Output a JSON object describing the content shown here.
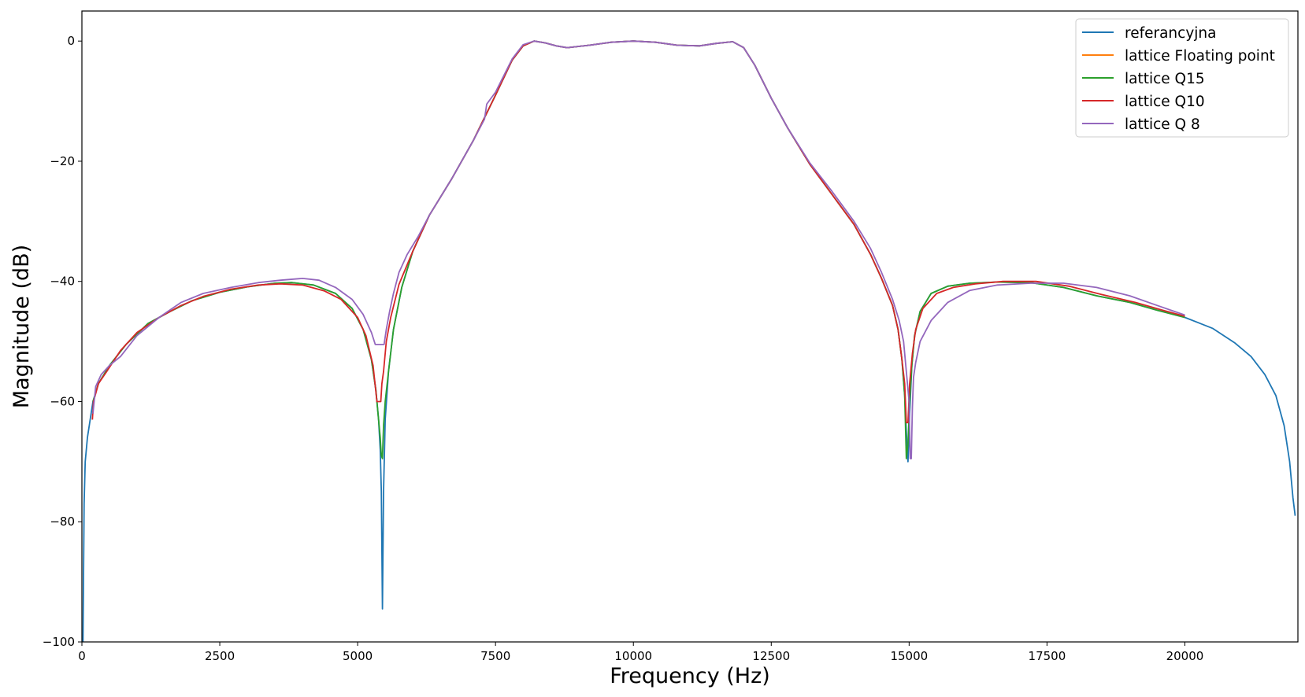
{
  "chart_data": {
    "type": "line",
    "title": "",
    "xlabel": "Frequency (Hz)",
    "ylabel": "Magnitude (dB)",
    "xlim": [
      0,
      22050
    ],
    "ylim": [
      -100,
      5
    ],
    "xticks": [
      0,
      2500,
      5000,
      7500,
      10000,
      12500,
      15000,
      17500,
      20000
    ],
    "yticks": [
      -100,
      -80,
      -60,
      -40,
      -20,
      0
    ],
    "xtick_labels": [
      "0",
      "2500",
      "5000",
      "7500",
      "10000",
      "12500",
      "15000",
      "17500",
      "20000"
    ],
    "ytick_labels": [
      "−100",
      "−80",
      "−60",
      "−40",
      "−20",
      "0"
    ],
    "grid": false,
    "legend_position": "top-right",
    "series": [
      {
        "name": "referancyjna",
        "color": "#1f77b4",
        "x": [
          0,
          20,
          40,
          60,
          100,
          150,
          200,
          300,
          500,
          800,
          1200,
          1600,
          2000,
          2500,
          3000,
          3500,
          3800,
          4200,
          4600,
          4900,
          5100,
          5250,
          5330,
          5380,
          5410,
          5430,
          5450,
          5470,
          5500,
          5560,
          5650,
          5800,
          6000,
          6300,
          6700,
          7100,
          7500,
          7800,
          8000,
          8200,
          8400,
          8600,
          8800,
          9200,
          9600,
          10000,
          10400,
          10800,
          11200,
          11500,
          11800,
          12000,
          12200,
          12500,
          12800,
          13200,
          13600,
          14000,
          14300,
          14500,
          14700,
          14800,
          14870,
          14920,
          14950,
          14980,
          15010,
          15050,
          15100,
          15200,
          15400,
          15700,
          16100,
          16600,
          17200,
          17800,
          18400,
          19000,
          19500,
          20000,
          20500,
          20900,
          21200,
          21450,
          21650,
          21800,
          21900,
          21960,
          22000
        ],
        "y": [
          -100,
          -100,
          -77,
          -70,
          -66,
          -63,
          -60,
          -57,
          -54,
          -50.5,
          -47,
          -45,
          -43.2,
          -41.8,
          -40.9,
          -40.3,
          -40.2,
          -40.6,
          -42,
          -44.5,
          -48,
          -53,
          -58,
          -63,
          -68,
          -75,
          -94.5,
          -75,
          -63,
          -55,
          -48,
          -41,
          -35,
          -29,
          -23,
          -16.5,
          -9,
          -3.2,
          -0.8,
          0,
          -0.3,
          -0.8,
          -1.1,
          -0.7,
          -0.2,
          0,
          -0.2,
          -0.7,
          -0.8,
          -0.4,
          -0.1,
          -1.1,
          -4,
          -9.5,
          -14.5,
          -20.5,
          -25.5,
          -30.5,
          -35.5,
          -39.5,
          -44,
          -48,
          -53,
          -59,
          -65,
          -70,
          -62,
          -54,
          -49,
          -45,
          -42,
          -40.8,
          -40.3,
          -40.1,
          -40.2,
          -41,
          -42.4,
          -43.5,
          -44.8,
          -46,
          -47.8,
          -50.2,
          -52.5,
          -55.5,
          -59,
          -64,
          -70,
          -76,
          -79
        ]
      },
      {
        "name": "lattice Floating point",
        "color": "#ff7f0e",
        "x": [],
        "y": []
      },
      {
        "name": "lattice Q15",
        "color": "#2ca02c",
        "x": [
          200,
          300,
          500,
          800,
          1200,
          1600,
          2000,
          2500,
          3000,
          3500,
          3800,
          4200,
          4600,
          4900,
          5100,
          5250,
          5330,
          5380,
          5410,
          5430,
          5450,
          5470,
          5500,
          5560,
          5650,
          5800,
          6000,
          6300,
          6700,
          7100,
          7500,
          7800,
          8000,
          8200,
          8400,
          8600,
          8800,
          9200,
          9600,
          10000,
          10400,
          10800,
          11200,
          11500,
          11800,
          12000,
          12200,
          12500,
          12800,
          13200,
          13600,
          14000,
          14300,
          14500,
          14700,
          14800,
          14870,
          14920,
          14950,
          14980,
          15010,
          15050,
          15100,
          15200,
          15400,
          15700,
          16100,
          16600,
          17200,
          17800,
          18400,
          19000,
          19500,
          20000
        ],
        "y": [
          -60,
          -57,
          -54,
          -50.5,
          -47,
          -45,
          -43.2,
          -41.8,
          -40.9,
          -40.3,
          -40.2,
          -40.6,
          -42,
          -44.5,
          -48,
          -53,
          -58,
          -63,
          -66,
          -69,
          -69.5,
          -64,
          -60,
          -55,
          -48,
          -41,
          -35,
          -29,
          -23,
          -16.5,
          -9,
          -3.2,
          -0.8,
          0,
          -0.3,
          -0.8,
          -1.1,
          -0.7,
          -0.2,
          0,
          -0.2,
          -0.7,
          -0.8,
          -0.4,
          -0.1,
          -1.1,
          -4,
          -9.5,
          -14.5,
          -20.5,
          -25.5,
          -30.5,
          -35.5,
          -39.5,
          -44,
          -48,
          -53,
          -59,
          -69.5,
          -67,
          -60,
          -54,
          -49,
          -45,
          -42,
          -40.8,
          -40.3,
          -40.1,
          -40.2,
          -41,
          -42.4,
          -43.5,
          -44.8,
          -46
        ]
      },
      {
        "name": "lattice Q10",
        "color": "#d62728",
        "x": [
          190,
          210,
          300,
          450,
          700,
          1000,
          1400,
          1800,
          2200,
          2700,
          3200,
          3600,
          4000,
          4400,
          4700,
          5000,
          5150,
          5280,
          5350,
          5380,
          5420,
          5440,
          5470,
          5520,
          5600,
          5750,
          6000,
          6300,
          6700,
          7100,
          7500,
          7800,
          8000,
          8200,
          8400,
          8600,
          8800,
          9200,
          9600,
          10000,
          10400,
          10800,
          11200,
          11500,
          11800,
          12000,
          12200,
          12500,
          12800,
          13200,
          13600,
          14000,
          14300,
          14500,
          14700,
          14800,
          14870,
          14920,
          14950,
          14980,
          15010,
          15060,
          15120,
          15250,
          15500,
          15800,
          16200,
          16700,
          17300,
          17900,
          18500,
          19100,
          19600,
          20000
        ],
        "y": [
          -63,
          -60,
          -57,
          -55,
          -51.5,
          -48.5,
          -46,
          -44,
          -42.5,
          -41.3,
          -40.6,
          -40.4,
          -40.6,
          -41.6,
          -43,
          -46,
          -49,
          -54,
          -60,
          -60,
          -60,
          -57,
          -55,
          -50,
          -46,
          -40.5,
          -35,
          -29,
          -23,
          -16.5,
          -9,
          -3.2,
          -0.8,
          0,
          -0.3,
          -0.8,
          -1.1,
          -0.7,
          -0.2,
          0,
          -0.2,
          -0.7,
          -0.8,
          -0.4,
          -0.1,
          -1.1,
          -4,
          -9.5,
          -14.5,
          -20.5,
          -25.5,
          -30.5,
          -35.5,
          -39.5,
          -44,
          -48,
          -53,
          -57,
          -63.5,
          -63.5,
          -57,
          -52,
          -48,
          -44.5,
          -42,
          -41,
          -40.4,
          -40,
          -40,
          -40.8,
          -42.2,
          -43.5,
          -44.8,
          -45.8
        ]
      },
      {
        "name": "lattice Q 8",
        "color": "#9467bd",
        "x": [
          200,
          250,
          350,
          500,
          700,
          1000,
          1400,
          1800,
          2200,
          2700,
          3200,
          3600,
          4000,
          4300,
          4600,
          4900,
          5100,
          5250,
          5320,
          5400,
          5480,
          5520,
          5580,
          5650,
          5750,
          5900,
          6100,
          6300,
          6700,
          7100,
          7300,
          7340,
          7500,
          7800,
          8000,
          8200,
          8400,
          8600,
          8800,
          9200,
          9600,
          10000,
          10400,
          10800,
          11200,
          11500,
          11800,
          12000,
          12200,
          12500,
          12800,
          13200,
          13600,
          14000,
          14300,
          14500,
          14700,
          14820,
          14900,
          14960,
          15000,
          15020,
          15040,
          15060,
          15080,
          15120,
          15200,
          15400,
          15700,
          16100,
          16600,
          17200,
          17800,
          18400,
          19000,
          19500,
          20000
        ],
        "y": [
          -62,
          -57.5,
          -55.5,
          -54,
          -52.5,
          -49,
          -46,
          -43.5,
          -42,
          -41,
          -40.2,
          -39.8,
          -39.5,
          -39.8,
          -41,
          -43,
          -45.5,
          -48.5,
          -50.5,
          -50.5,
          -50.5,
          -48,
          -45,
          -42,
          -38.5,
          -35.5,
          -32.5,
          -29,
          -23,
          -16.5,
          -13,
          -10.5,
          -8.5,
          -3,
          -0.6,
          0,
          -0.3,
          -0.8,
          -1.1,
          -0.7,
          -0.2,
          0,
          -0.2,
          -0.7,
          -0.8,
          -0.4,
          -0.1,
          -1.1,
          -4,
          -9.5,
          -14.5,
          -20.3,
          -25,
          -30,
          -34.5,
          -38.5,
          -43,
          -46.5,
          -50,
          -56,
          -60,
          -69.5,
          -69.5,
          -61,
          -56,
          -53.5,
          -50,
          -46.5,
          -43.5,
          -41.5,
          -40.6,
          -40.3,
          -40.3,
          -41,
          -42.4,
          -44,
          -45.6
        ]
      }
    ]
  }
}
